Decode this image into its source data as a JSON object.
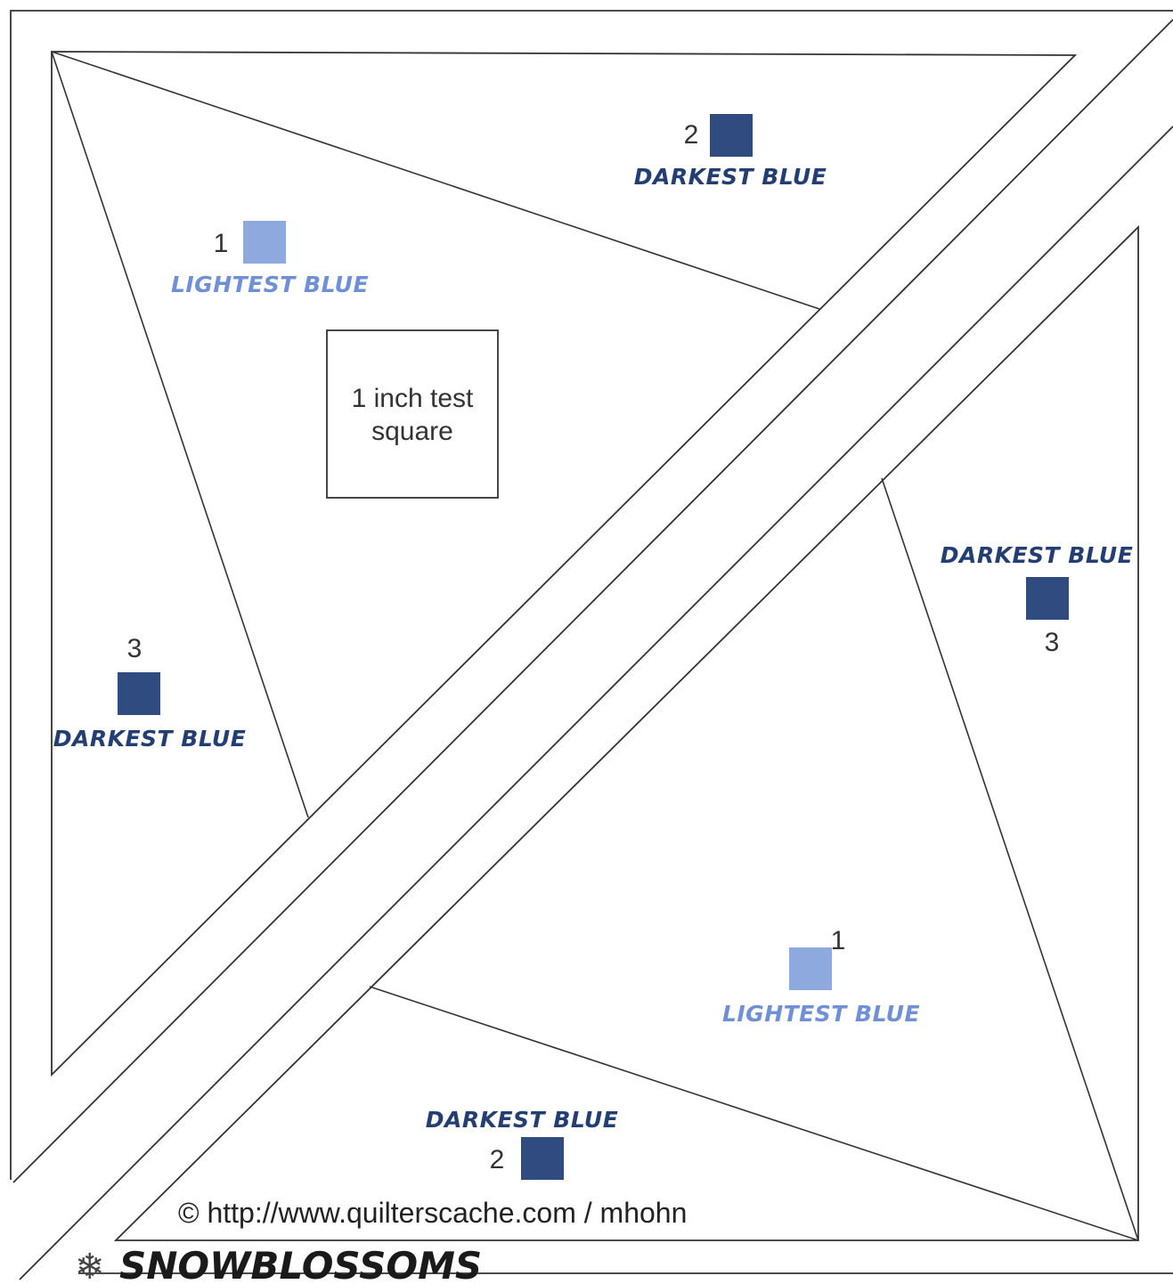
{
  "colors": {
    "lightest_blue": "#8ea9dd",
    "darkest_blue": "#2f4b80",
    "lightest_text": "#6f8fd6",
    "darkest_text": "#233e73",
    "line": "#333333"
  },
  "labels": {
    "lightest": "LIGHTEST BLUE",
    "darkest": "DARKEST BLUE"
  },
  "pieces": [
    {
      "number": "1",
      "color": "lightest_blue",
      "label": "lightest"
    },
    {
      "number": "2",
      "color": "darkest_blue",
      "label": "darkest"
    },
    {
      "number": "3",
      "color": "darkest_blue",
      "label": "darkest"
    },
    {
      "number": "3",
      "color": "darkest_blue",
      "label": "darkest"
    },
    {
      "number": "1",
      "color": "lightest_blue",
      "label": "lightest"
    },
    {
      "number": "2",
      "color": "darkest_blue",
      "label": "darkest"
    }
  ],
  "test_square": {
    "line1": "1 inch test",
    "line2": "square"
  },
  "copyright": "© http://www.quilterscache.com / mhohn",
  "brand": {
    "name": "SNOWBLOSSOMS",
    "icon": "snowflake-icon",
    "glyph": "❄"
  }
}
